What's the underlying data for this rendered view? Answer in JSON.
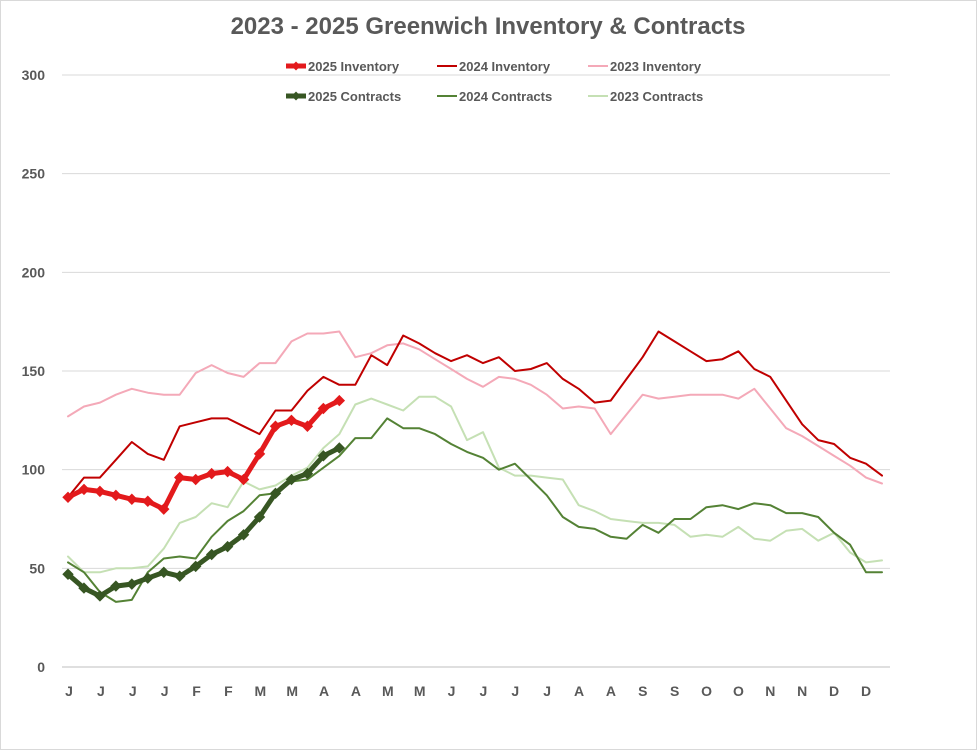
{
  "chart_data": {
    "type": "line",
    "title": "2023 - 2025 Greenwich Inventory & Contracts",
    "ylim": [
      0,
      300
    ],
    "yticks": [
      0,
      50,
      100,
      150,
      200,
      250,
      300
    ],
    "x_labels": [
      "J",
      "J",
      "J",
      "J",
      "F",
      "F",
      "M",
      "M",
      "A",
      "A",
      "M",
      "M",
      "J",
      "J",
      "J",
      "J",
      "A",
      "A",
      "S",
      "S",
      "O",
      "O",
      "N",
      "N",
      "D",
      "D"
    ],
    "legend_position": "top",
    "grid": true,
    "series": [
      {
        "name": "2025 Inventory",
        "color": "#e31a1c",
        "style": "thick-marker",
        "values": [
          86,
          90,
          89,
          87,
          85,
          84,
          80,
          96,
          95,
          98,
          99,
          95,
          108,
          122,
          125,
          122,
          131,
          135
        ]
      },
      {
        "name": "2024 Inventory",
        "color": "#c00000",
        "style": "line",
        "values": [
          86,
          96,
          96,
          105,
          114,
          108,
          105,
          122,
          124,
          126,
          126,
          122,
          118,
          130,
          130,
          140,
          147,
          143,
          143,
          158,
          153,
          168,
          164,
          159,
          155,
          158,
          154,
          157,
          150,
          151,
          154,
          146,
          141,
          134,
          135,
          146,
          157,
          170,
          165,
          160,
          155,
          156,
          160,
          151,
          147,
          135,
          123,
          115,
          113,
          106,
          103,
          97
        ]
      },
      {
        "name": "2023 Inventory",
        "color": "#f4a9b8",
        "style": "line",
        "values": [
          127,
          132,
          134,
          138,
          141,
          139,
          138,
          138,
          149,
          153,
          149,
          147,
          154,
          154,
          165,
          169,
          169,
          170,
          157,
          159,
          163,
          164,
          161,
          156,
          151,
          146,
          142,
          147,
          146,
          143,
          138,
          131,
          132,
          131,
          118,
          128,
          138,
          136,
          137,
          138,
          138,
          138,
          136,
          141,
          131,
          121,
          117,
          112,
          107,
          102,
          96,
          93
        ]
      },
      {
        "name": "2025 Contracts",
        "color": "#375623",
        "style": "thick-marker",
        "values": [
          47,
          40,
          36,
          41,
          42,
          45,
          48,
          46,
          51,
          57,
          61,
          67,
          76,
          88,
          95,
          98,
          107,
          111
        ]
      },
      {
        "name": "2024 Contracts",
        "color": "#548235",
        "style": "line",
        "values": [
          53,
          48,
          38,
          33,
          34,
          48,
          55,
          56,
          55,
          66,
          74,
          79,
          87,
          88,
          94,
          95,
          101,
          107,
          116,
          116,
          126,
          121,
          121,
          118,
          113,
          109,
          106,
          100,
          103,
          95,
          87,
          76,
          71,
          70,
          66,
          65,
          72,
          68,
          75,
          75,
          81,
          82,
          80,
          83,
          82,
          78,
          78,
          76,
          68,
          62,
          48,
          48
        ]
      },
      {
        "name": "2023 Contracts",
        "color": "#c5e0b4",
        "style": "line",
        "values": [
          56,
          48,
          48,
          50,
          50,
          51,
          60,
          73,
          76,
          83,
          81,
          94,
          90,
          92,
          97,
          101,
          111,
          118,
          133,
          136,
          133,
          130,
          137,
          137,
          132,
          115,
          119,
          101,
          97,
          97,
          96,
          95,
          82,
          79,
          75,
          74,
          73,
          73,
          72,
          66,
          67,
          66,
          71,
          65,
          64,
          69,
          70,
          64,
          68,
          58,
          53,
          54
        ]
      }
    ]
  }
}
